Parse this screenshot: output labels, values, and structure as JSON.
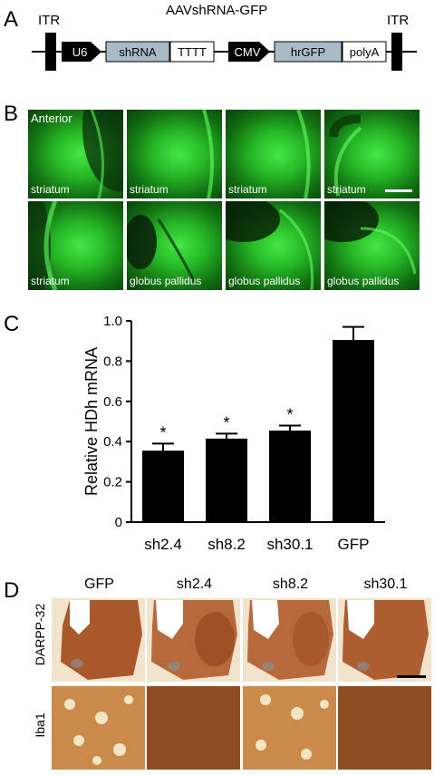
{
  "panel_letters": {
    "a": "A",
    "b": "B",
    "c": "C",
    "d": "D"
  },
  "panelA": {
    "title": "AAVshRNA-GFP",
    "itr_left": "ITR",
    "itr_right": "ITR",
    "elements": [
      "U6",
      "shRNA",
      "TTTT",
      "CMV",
      "hrGFP",
      "polyA"
    ]
  },
  "panelB": {
    "header": "Anterior",
    "images": [
      {
        "label": "striatum"
      },
      {
        "label": "striatum"
      },
      {
        "label": "striatum"
      },
      {
        "label": "striatum"
      },
      {
        "label": "striatum"
      },
      {
        "label": "globus pallidus"
      },
      {
        "label": "globus pallidus"
      },
      {
        "label": "globus pallidus"
      }
    ]
  },
  "panelD": {
    "columns": [
      "GFP",
      "sh2.4",
      "sh8.2",
      "sh30.1"
    ],
    "rows": [
      "DARPP-32",
      "Iba1"
    ]
  },
  "colors": {
    "bar": "#000000",
    "gene_box": "#a9bcc6",
    "promoter": "#000000",
    "fluorescence": "#2ecf2e",
    "stain": "#a35a2a"
  },
  "chart_data": {
    "type": "bar",
    "categories": [
      "sh2.4",
      "sh8.2",
      "sh30.1",
      "GFP"
    ],
    "values": [
      0.355,
      0.415,
      0.455,
      0.905
    ],
    "errors": [
      0.035,
      0.025,
      0.025,
      0.065
    ],
    "significance": [
      "*",
      "*",
      "*",
      ""
    ],
    "ylabel": "Relative HDh mRNA",
    "xlabel": "",
    "ylim": [
      0,
      1.0
    ],
    "yticks": [
      "0",
      "0.2",
      "0.4",
      "0.6",
      "0.8",
      "1.0"
    ],
    "grid": false
  }
}
